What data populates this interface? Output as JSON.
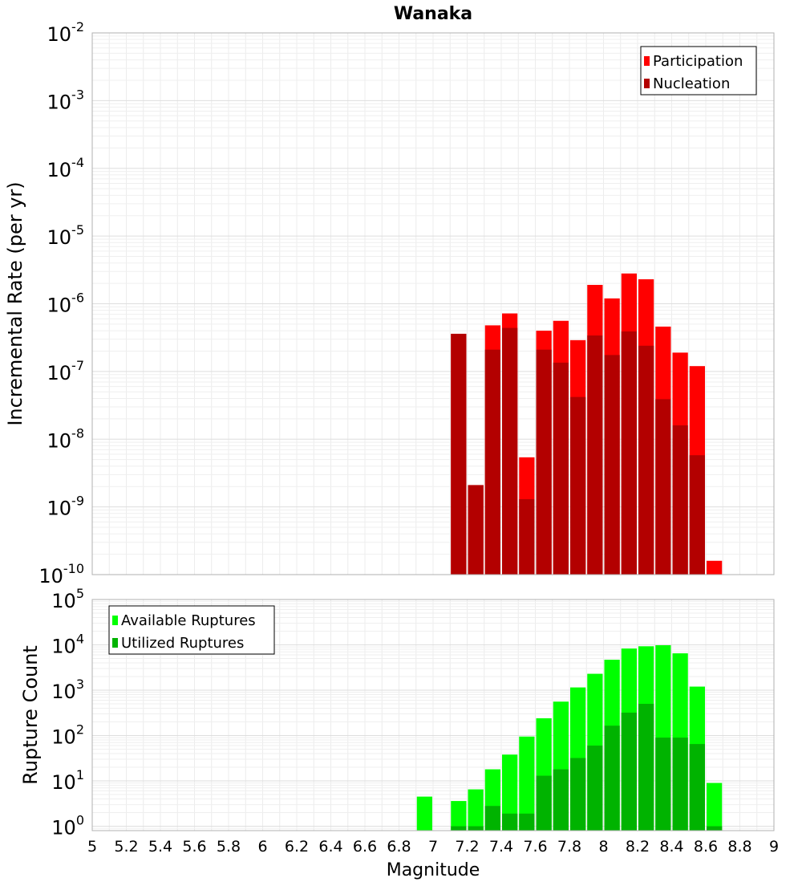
{
  "chart_data": [
    {
      "type": "bar",
      "title": "Wanaka",
      "xlabel": "",
      "ylabel": "Incremental Rate (per yr)",
      "y_scale": "log",
      "ylim": [
        1e-10,
        0.01
      ],
      "xlim": [
        5,
        9
      ],
      "grid": true,
      "legend_position": "top-right",
      "y_tick_exponents": [
        "-10",
        "-9",
        "-8",
        "-7",
        "-6",
        "-5",
        "-4",
        "-3",
        "-2"
      ],
      "x": [
        7.15,
        7.25,
        7.35,
        7.45,
        7.55,
        7.65,
        7.75,
        7.85,
        7.95,
        8.05,
        8.15,
        8.25,
        8.35,
        8.45,
        8.55,
        8.65
      ],
      "series": [
        {
          "name": "Participation",
          "color": "#ff0000",
          "values": [
            3.6e-07,
            2.1e-09,
            4.8e-07,
            7.2e-07,
            5.4e-09,
            4e-07,
            5.6e-07,
            2.9e-07,
            1.9e-06,
            1.2e-06,
            2.8e-06,
            2.3e-06,
            4.6e-07,
            1.9e-07,
            1.2e-07,
            1.6e-10
          ]
        },
        {
          "name": "Nucleation",
          "color": "#b30000",
          "values": [
            3.6e-07,
            2.1e-09,
            2.1e-07,
            4.4e-07,
            1.3e-09,
            2.1e-07,
            1.35e-07,
            4.2e-08,
            3.4e-07,
            1.75e-07,
            3.9e-07,
            2.4e-07,
            3.9e-08,
            1.6e-08,
            5.8e-09,
            null
          ]
        }
      ]
    },
    {
      "type": "bar",
      "title": "",
      "xlabel": "Magnitude",
      "ylabel": "Rupture Count",
      "y_scale": "log",
      "ylim": [
        0.8,
        100000.0
      ],
      "xlim": [
        5,
        9
      ],
      "grid": true,
      "legend_position": "top-left",
      "x_ticks": [
        "5",
        "5.2",
        "5.4",
        "5.6",
        "5.8",
        "6",
        "6.2",
        "6.4",
        "6.6",
        "6.8",
        "7",
        "7.2",
        "7.4",
        "7.6",
        "7.8",
        "8",
        "8.2",
        "8.4",
        "8.6",
        "8.8",
        "9"
      ],
      "y_tick_exponents": [
        "0",
        "1",
        "2",
        "3",
        "4",
        "5"
      ],
      "x": [
        6.95,
        7.15,
        7.25,
        7.35,
        7.45,
        7.55,
        7.65,
        7.75,
        7.85,
        7.95,
        8.05,
        8.15,
        8.25,
        8.35,
        8.45,
        8.55,
        8.65
      ],
      "series": [
        {
          "name": "Available Ruptures",
          "color": "#00ff00",
          "values": [
            4.5,
            3.6,
            6.5,
            18,
            38,
            95,
            240,
            560,
            1150,
            2300,
            4700,
            8300,
            9300,
            9800,
            6500,
            1200,
            9
          ]
        },
        {
          "name": "Utilized Ruptures",
          "color": "#00b300",
          "values": [
            null,
            1,
            1,
            2.8,
            1.9,
            1.9,
            13,
            18,
            32,
            60,
            165,
            320,
            500,
            90,
            90,
            65,
            1
          ]
        }
      ]
    }
  ]
}
